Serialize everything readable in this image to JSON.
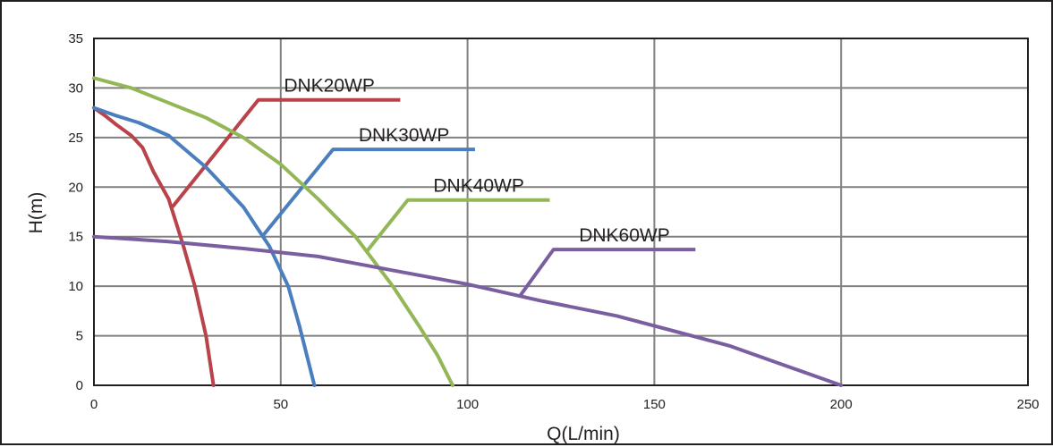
{
  "chart_data": {
    "type": "line",
    "title": "",
    "xlabel": "Q(L/min)",
    "ylabel": "H(m)",
    "xlim": [
      0,
      250
    ],
    "ylim": [
      0,
      35
    ],
    "xticks": [
      0,
      50,
      100,
      150,
      200,
      250
    ],
    "yticks": [
      0,
      5,
      10,
      15,
      20,
      25,
      30,
      35
    ],
    "xtick_labels": [
      "0",
      "50",
      "100",
      "150",
      "200",
      "250"
    ],
    "ytick_labels": [
      "0",
      "5",
      "10",
      "15",
      "20",
      "25",
      "30",
      "35"
    ],
    "grid": true,
    "legend": "inline labels with leader lines",
    "series": [
      {
        "name": "DNK20WP",
        "color": "#b8434a",
        "x": [
          0,
          3,
          6,
          10,
          13,
          16,
          20,
          24,
          27,
          30,
          32
        ],
        "y": [
          28,
          27.2,
          26.3,
          25.2,
          24,
          21.5,
          18.8,
          14,
          10,
          5,
          0
        ],
        "label_leader": [
          [
            21,
            18
          ],
          [
            44,
            28.8
          ],
          [
            82,
            28.8
          ]
        ]
      },
      {
        "name": "DNK30WP",
        "color": "#4a7ebf",
        "x": [
          0,
          6,
          12,
          20,
          30,
          40,
          47,
          52,
          55,
          59
        ],
        "y": [
          28,
          27.2,
          26.5,
          25.2,
          22,
          18,
          14,
          10,
          6,
          0
        ],
        "label_leader": [
          [
            45,
            15
          ],
          [
            64,
            23.8
          ],
          [
            102,
            23.8
          ]
        ]
      },
      {
        "name": "DNK40WP",
        "color": "#93b656",
        "x": [
          0,
          10,
          20,
          30,
          40,
          50,
          60,
          70,
          80,
          87,
          92,
          96
        ],
        "y": [
          31,
          30,
          28.5,
          27,
          25,
          22.3,
          18.8,
          15,
          10,
          6,
          3,
          0
        ],
        "label_leader": [
          [
            73,
            13.5
          ],
          [
            84,
            18.7
          ],
          [
            122,
            18.7
          ]
        ]
      },
      {
        "name": "DNK60WP",
        "color": "#7a5fa0",
        "x": [
          0,
          20,
          40,
          60,
          80,
          100,
          120,
          140,
          160,
          170,
          185,
          200
        ],
        "y": [
          15,
          14.5,
          13.8,
          13,
          11.6,
          10.2,
          8.5,
          7,
          5,
          4,
          2,
          0
        ],
        "label_leader": [
          [
            114,
            9
          ],
          [
            123,
            13.7
          ],
          [
            161,
            13.7
          ]
        ]
      }
    ]
  }
}
